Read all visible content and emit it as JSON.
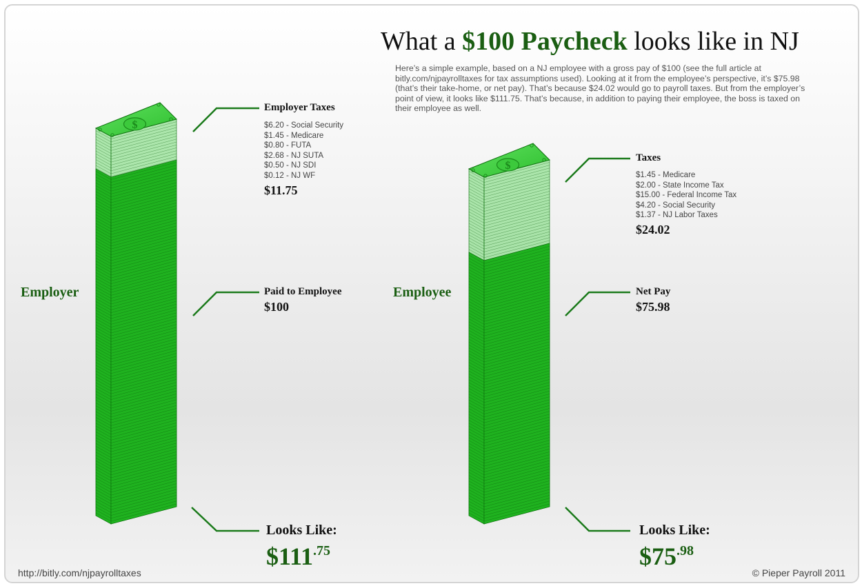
{
  "title": {
    "pre": "What a ",
    "highlight": "$100 Paycheck",
    "post": " looks like in NJ"
  },
  "intro": "Here’s a simple example, based on a NJ employee with a gross pay of $100 (see the full article at bitly.com/njpayrolltaxes for tax assumptions used). Looking at it from the employee’s perspective, it’s $75.98 (that’s their take-home, or net pay). That’s because $24.02 would go to payroll taxes. But from the employer’s point of view, it looks like $111.75. That’s because, in addition to paying their employee, the boss is taxed on their employee as well.",
  "employer": {
    "label": "Employer",
    "taxes_title": "Employer Taxes",
    "tax_lines": [
      "$6.20 - Social Security",
      "$1.45 - Medicare",
      "$0.80 - FUTA",
      "$2.68 - NJ SUTA",
      "$0.50 - NJ SDI",
      "$0.12 - NJ WF"
    ],
    "taxes_total": "$11.75",
    "paid_title": "Paid to Employee",
    "paid_amount": "$100",
    "looks_like_label": "Looks Like:",
    "looks_like_main": "$111",
    "looks_like_cents": ".75",
    "total_value": 111.75,
    "solid_value": 100
  },
  "employee": {
    "label": "Employee",
    "taxes_title": "Taxes",
    "tax_lines": [
      "$1.45 - Medicare",
      "$2.00 - State Income Tax",
      "$15.00 - Federal Income Tax",
      "$4.20 - Social Security",
      "$1.37 - NJ Labor Taxes"
    ],
    "taxes_total": "$24.02",
    "paid_title": "Net Pay",
    "paid_amount": "$75.98",
    "looks_like_label": "Looks Like:",
    "looks_like_main": "$75",
    "looks_like_cents": ".98",
    "total_value": 100,
    "solid_value": 75.98
  },
  "footer": {
    "left": "http://bitly.com/njpayrolltaxes",
    "right": "© Pieper Payroll 2011"
  },
  "colors": {
    "brand": "#1a5e12",
    "money": "#1fb21f",
    "connector": "#1a7a1a"
  },
  "icons": {
    "bill_symbol": "$"
  }
}
